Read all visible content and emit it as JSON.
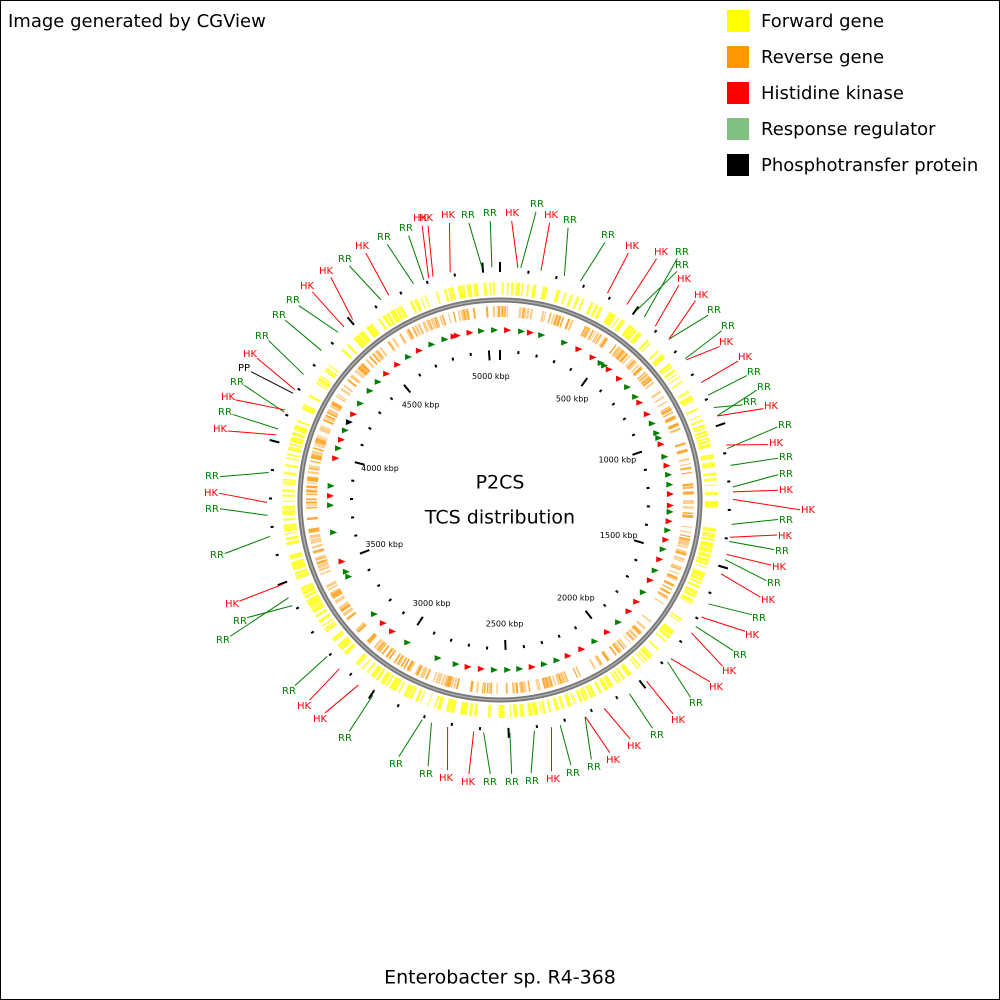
{
  "header": {
    "credit": "Image generated by CGView",
    "title": "Enterobacter sp. R4-368"
  },
  "legend": [
    {
      "label": "Forward gene",
      "color": "#ffff00"
    },
    {
      "label": "Reverse gene",
      "color": "#ff9900"
    },
    {
      "label": "Histidine kinase",
      "color": "#ff0000"
    },
    {
      "label": "Response regulator",
      "color": "#80c080"
    },
    {
      "label": "Phosphotransfer protein",
      "color": "#000000"
    }
  ],
  "center": {
    "line1": "P2CS",
    "line2": "TCS distribution"
  },
  "ticks": [
    "500 kbp",
    "1000 kbp",
    "1500 kbp",
    "2000 kbp",
    "2500 kbp",
    "3000 kbp",
    "3500 kbp",
    "4000 kbp",
    "4500 kbp",
    "5000 kbp"
  ],
  "features": [
    {
      "label": "HK",
      "color": "#ff0000"
    },
    {
      "label": "RR",
      "color": "#008000"
    },
    {
      "label": "RR",
      "color": "#008000"
    },
    {
      "label": "HK",
      "color": "#ff0000"
    },
    {
      "label": "RR",
      "color": "#008000"
    },
    {
      "label": "HK",
      "color": "#ff0000"
    },
    {
      "label": "RR",
      "color": "#008000"
    },
    {
      "label": "HK",
      "color": "#ff0000"
    },
    {
      "label": "RR",
      "color": "#008000"
    },
    {
      "label": "RR",
      "color": "#008000"
    },
    {
      "label": "HK",
      "color": "#ff0000"
    },
    {
      "label": "RR",
      "color": "#008000"
    },
    {
      "label": "RR",
      "color": "#008000"
    },
    {
      "label": "HK",
      "color": "#ff0000"
    },
    {
      "label": "HK",
      "color": "#ff0000"
    },
    {
      "label": "RR",
      "color": "#008000"
    },
    {
      "label": "RR",
      "color": "#008000"
    },
    {
      "label": "HK",
      "color": "#ff0000"
    },
    {
      "label": "HK",
      "color": "#ff0000"
    },
    {
      "label": "RR",
      "color": "#008000"
    },
    {
      "label": "RR",
      "color": "#008000"
    },
    {
      "label": "RR",
      "color": "#008000"
    },
    {
      "label": "HK",
      "color": "#ff0000"
    },
    {
      "label": "RR",
      "color": "#008000"
    },
    {
      "label": "HK",
      "color": "#ff0000"
    },
    {
      "label": "RR",
      "color": "#008000"
    },
    {
      "label": "RR",
      "color": "#008000"
    },
    {
      "label": "HK",
      "color": "#ff0000"
    },
    {
      "label": "HK",
      "color": "#ff0000"
    },
    {
      "label": "RR",
      "color": "#008000"
    },
    {
      "label": "HK",
      "color": "#ff0000"
    },
    {
      "label": "RR",
      "color": "#008000"
    },
    {
      "label": "HK",
      "color": "#ff0000"
    },
    {
      "label": "RR",
      "color": "#008000"
    },
    {
      "label": "HK",
      "color": "#ff0000"
    },
    {
      "label": "RR",
      "color": "#008000"
    },
    {
      "label": "HK",
      "color": "#ff0000"
    },
    {
      "label": "RR",
      "color": "#008000"
    },
    {
      "label": "HK",
      "color": "#ff0000"
    },
    {
      "label": "HK",
      "color": "#ff0000"
    },
    {
      "label": "RR",
      "color": "#008000"
    },
    {
      "label": "HK",
      "color": "#ff0000"
    },
    {
      "label": "RR",
      "color": "#008000"
    },
    {
      "label": "HK",
      "color": "#ff0000"
    },
    {
      "label": "HK",
      "color": "#ff0000"
    },
    {
      "label": "RR",
      "color": "#008000"
    },
    {
      "label": "RR",
      "color": "#008000"
    },
    {
      "label": "HK",
      "color": "#ff0000"
    },
    {
      "label": "RR",
      "color": "#008000"
    },
    {
      "label": "RR",
      "color": "#008000"
    },
    {
      "label": "RR",
      "color": "#008000"
    },
    {
      "label": "HK",
      "color": "#ff0000"
    },
    {
      "label": "HK",
      "color": "#ff0000"
    },
    {
      "label": "RR",
      "color": "#008000"
    },
    {
      "label": "RR",
      "color": "#008000"
    },
    {
      "label": "RR",
      "color": "#008000"
    },
    {
      "label": "HK",
      "color": "#ff0000"
    },
    {
      "label": "HK",
      "color": "#ff0000"
    },
    {
      "label": "RR",
      "color": "#008000"
    },
    {
      "label": "RR",
      "color": "#008000"
    },
    {
      "label": "RR",
      "color": "#008000"
    },
    {
      "label": "HK",
      "color": "#ff0000"
    },
    {
      "label": "RR",
      "color": "#008000"
    },
    {
      "label": "RR",
      "color": "#008000"
    },
    {
      "label": "HK",
      "color": "#ff0000"
    },
    {
      "label": "RR",
      "color": "#008000"
    },
    {
      "label": "HK",
      "color": "#ff0000"
    },
    {
      "label": "RR",
      "color": "#008000"
    },
    {
      "label": "HK",
      "color": "#ff0000"
    },
    {
      "label": "RR",
      "color": "#008000"
    },
    {
      "label": "PP",
      "color": "#000000"
    },
    {
      "label": "HK",
      "color": "#ff0000"
    },
    {
      "label": "RR",
      "color": "#008000"
    },
    {
      "label": "RR",
      "color": "#008000"
    },
    {
      "label": "RR",
      "color": "#008000"
    },
    {
      "label": "HK",
      "color": "#ff0000"
    },
    {
      "label": "HK",
      "color": "#ff0000"
    },
    {
      "label": "RR",
      "color": "#008000"
    },
    {
      "label": "HK",
      "color": "#ff0000"
    },
    {
      "label": "HK",
      "color": "#ff0000"
    },
    {
      "label": "RR",
      "color": "#008000"
    },
    {
      "label": "HK",
      "color": "#ff0000"
    }
  ]
}
